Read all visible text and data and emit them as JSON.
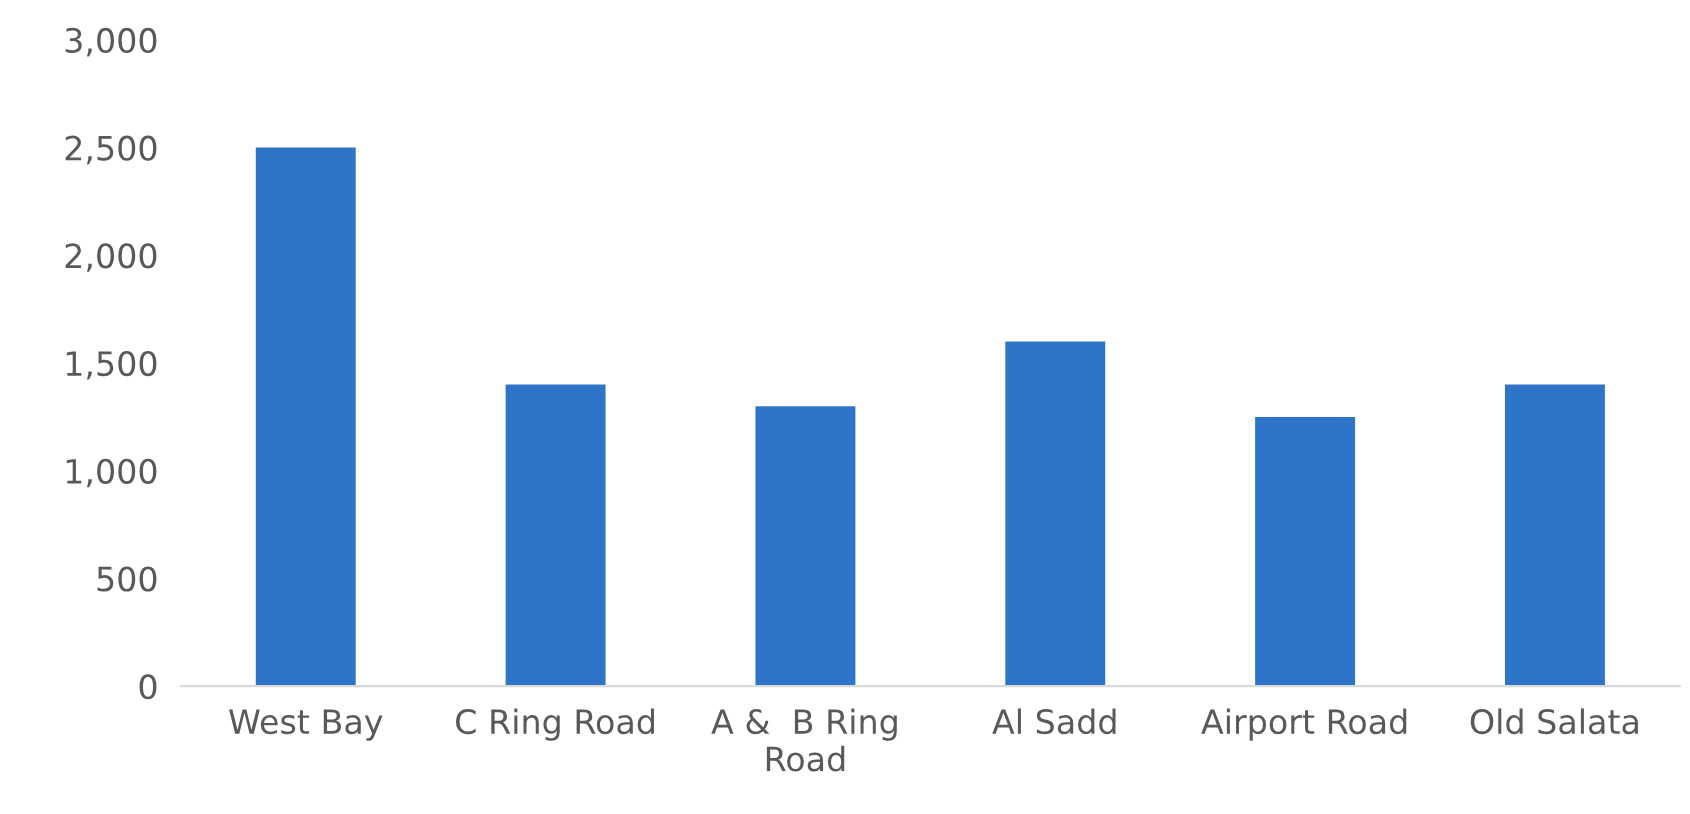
{
  "chart_data": {
    "type": "bar",
    "categories": [
      "West Bay",
      "C Ring Road",
      "A &  B Ring\nRoad",
      "Al Sadd",
      "Airport Road",
      "Old Salata"
    ],
    "values": [
      2500,
      1400,
      1300,
      1600,
      1250,
      1400
    ],
    "color": "#2e74c8",
    "ylim": [
      0,
      3000
    ],
    "yticks": [
      {
        "value": 0,
        "label": "0"
      },
      {
        "value": 500,
        "label": "500"
      },
      {
        "value": 1000,
        "label": "1,000"
      },
      {
        "value": 1500,
        "label": "1,500"
      },
      {
        "value": 2000,
        "label": "2,000"
      },
      {
        "value": 2500,
        "label": "2,500"
      },
      {
        "value": 3000,
        "label": "3,000"
      }
    ],
    "grid": false,
    "legend": false
  }
}
